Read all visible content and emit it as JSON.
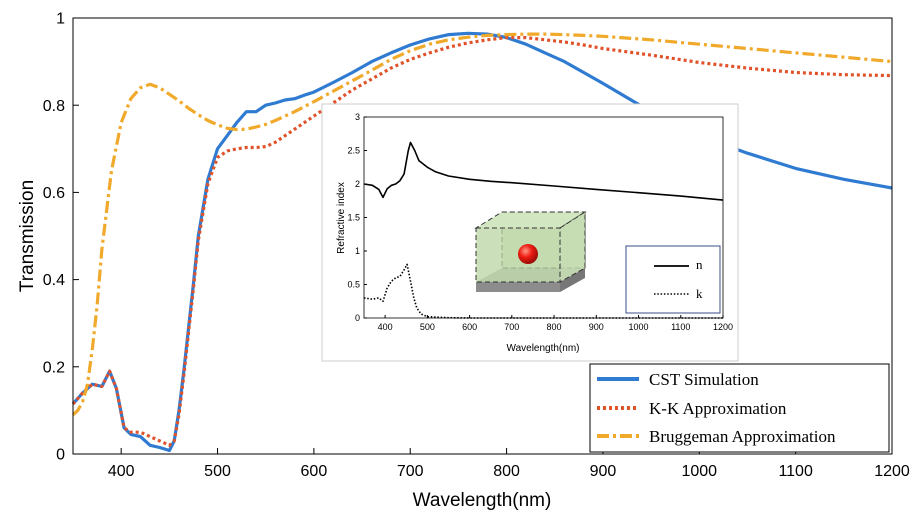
{
  "chart_data": [
    {
      "type": "line",
      "xlabel": "Wavelength(nm)",
      "ylabel": "Transmission",
      "xlim": [
        350,
        1200
      ],
      "ylim": [
        0,
        1
      ],
      "xticks": [
        "400",
        "500",
        "600",
        "700",
        "800",
        "900",
        "1000",
        "1100",
        "1200"
      ],
      "yticks": [
        "0",
        "0.2",
        "0.4",
        "0.6",
        "0.8",
        "1"
      ],
      "grid": false,
      "legend_position": "bottom-right",
      "series": [
        {
          "name": "CST Simulation",
          "color": "#2f7bd1",
          "style": "solid",
          "x": [
            350,
            360,
            370,
            380,
            388,
            395,
            403,
            410,
            420,
            430,
            440,
            450,
            455,
            460,
            465,
            470,
            475,
            480,
            490,
            500,
            510,
            520,
            530,
            540,
            550,
            560,
            570,
            580,
            590,
            600,
            620,
            640,
            660,
            680,
            700,
            720,
            740,
            760,
            780,
            800,
            820,
            840,
            860,
            880,
            900,
            950,
            1000,
            1050,
            1100,
            1150,
            1200
          ],
          "y": [
            0.115,
            0.14,
            0.16,
            0.155,
            0.19,
            0.15,
            0.06,
            0.045,
            0.04,
            0.02,
            0.015,
            0.008,
            0.03,
            0.1,
            0.19,
            0.29,
            0.39,
            0.5,
            0.63,
            0.7,
            0.73,
            0.76,
            0.785,
            0.785,
            0.8,
            0.805,
            0.812,
            0.815,
            0.823,
            0.83,
            0.852,
            0.875,
            0.9,
            0.92,
            0.938,
            0.952,
            0.962,
            0.965,
            0.963,
            0.955,
            0.94,
            0.92,
            0.9,
            0.875,
            0.85,
            0.785,
            0.73,
            0.69,
            0.655,
            0.63,
            0.61
          ]
        },
        {
          "name": "K-K Approximation",
          "color": "#e0522a",
          "style": "dotted",
          "x": [
            350,
            360,
            370,
            380,
            388,
            395,
            403,
            410,
            420,
            430,
            440,
            450,
            455,
            460,
            465,
            470,
            475,
            480,
            490,
            500,
            510,
            520,
            530,
            540,
            550,
            560,
            570,
            580,
            600,
            620,
            640,
            660,
            680,
            700,
            720,
            740,
            760,
            780,
            800,
            820,
            840,
            860,
            880,
            900,
            950,
            1000,
            1050,
            1100,
            1150,
            1200
          ],
          "y": [
            0.115,
            0.14,
            0.16,
            0.155,
            0.19,
            0.15,
            0.06,
            0.05,
            0.05,
            0.04,
            0.03,
            0.02,
            0.03,
            0.09,
            0.18,
            0.28,
            0.38,
            0.49,
            0.62,
            0.68,
            0.695,
            0.7,
            0.703,
            0.703,
            0.705,
            0.715,
            0.73,
            0.745,
            0.775,
            0.805,
            0.835,
            0.86,
            0.885,
            0.905,
            0.92,
            0.933,
            0.943,
            0.95,
            0.955,
            0.955,
            0.95,
            0.945,
            0.938,
            0.93,
            0.915,
            0.898,
            0.885,
            0.875,
            0.87,
            0.868
          ]
        },
        {
          "name": "Bruggeman Approximation",
          "color": "#f0a92a",
          "style": "dashdot",
          "x": [
            350,
            355,
            360,
            365,
            370,
            375,
            380,
            390,
            400,
            410,
            420,
            430,
            440,
            450,
            460,
            470,
            480,
            490,
            500,
            510,
            520,
            530,
            540,
            550,
            560,
            580,
            600,
            620,
            640,
            660,
            680,
            700,
            720,
            740,
            760,
            780,
            800,
            820,
            840,
            860,
            880,
            900,
            950,
            1000,
            1050,
            1100,
            1150,
            1200
          ],
          "y": [
            0.09,
            0.1,
            0.12,
            0.16,
            0.24,
            0.34,
            0.47,
            0.65,
            0.76,
            0.815,
            0.84,
            0.848,
            0.84,
            0.825,
            0.81,
            0.793,
            0.778,
            0.765,
            0.755,
            0.747,
            0.744,
            0.745,
            0.75,
            0.756,
            0.765,
            0.785,
            0.808,
            0.832,
            0.856,
            0.88,
            0.905,
            0.925,
            0.94,
            0.95,
            0.956,
            0.96,
            0.962,
            0.963,
            0.963,
            0.962,
            0.96,
            0.958,
            0.95,
            0.94,
            0.93,
            0.92,
            0.91,
            0.9
          ]
        }
      ]
    },
    {
      "type": "line",
      "xlabel": "Wavelength(nm)",
      "ylabel": "Refractive index",
      "xlim": [
        350,
        1200
      ],
      "ylim": [
        0,
        3
      ],
      "xticks": [
        "400",
        "500",
        "600",
        "700",
        "800",
        "900",
        "1000",
        "1100",
        "1200"
      ],
      "yticks": [
        "0",
        "0.5",
        "1",
        "1.5",
        "2",
        "2.5",
        "3"
      ],
      "grid": false,
      "legend_position": "right",
      "series": [
        {
          "name": "n",
          "color": "#000000",
          "style": "solid",
          "x": [
            350,
            370,
            385,
            395,
            405,
            415,
            425,
            435,
            445,
            455,
            460,
            470,
            480,
            500,
            520,
            550,
            600,
            650,
            700,
            800,
            900,
            1000,
            1100,
            1200
          ],
          "y": [
            2.0,
            1.98,
            1.92,
            1.8,
            1.93,
            1.98,
            2.0,
            2.05,
            2.15,
            2.5,
            2.62,
            2.5,
            2.35,
            2.25,
            2.18,
            2.12,
            2.07,
            2.04,
            2.02,
            1.97,
            1.92,
            1.87,
            1.82,
            1.76
          ]
        },
        {
          "name": "k",
          "color": "#000000",
          "style": "dotted",
          "x": [
            350,
            370,
            385,
            395,
            405,
            415,
            425,
            435,
            445,
            452,
            460,
            468,
            475,
            485,
            500,
            550,
            600,
            700,
            800,
            900,
            1000,
            1100,
            1200
          ],
          "y": [
            0.3,
            0.28,
            0.3,
            0.25,
            0.45,
            0.55,
            0.6,
            0.62,
            0.72,
            0.8,
            0.55,
            0.3,
            0.15,
            0.06,
            0.02,
            0.005,
            0.0,
            0.0,
            0.0,
            0.0,
            0.0,
            0.0,
            0.0
          ]
        }
      ]
    }
  ]
}
